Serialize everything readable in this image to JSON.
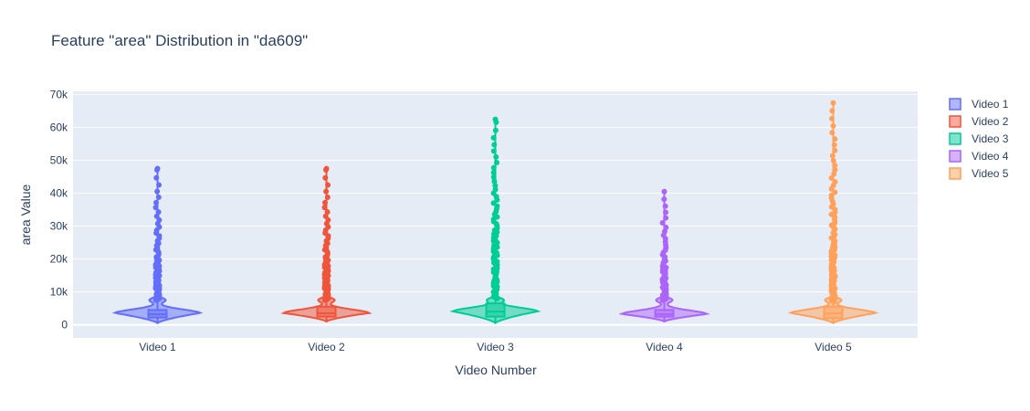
{
  "chart_data": {
    "type": "violin",
    "title": "Feature \"area\" Distribution in \"da609\"",
    "xlabel": "Video Number",
    "ylabel": "area Value",
    "ylim": [
      -4000,
      71000
    ],
    "yticks": [
      0,
      10000,
      20000,
      30000,
      40000,
      50000,
      60000,
      70000
    ],
    "ytick_labels": [
      "0",
      "10k",
      "20k",
      "30k",
      "40k",
      "50k",
      "60k",
      "70k"
    ],
    "categories": [
      "Video 1",
      "Video 2",
      "Video 3",
      "Video 4",
      "Video 5"
    ],
    "legend_position": "top-right",
    "grid": true,
    "series": [
      {
        "name": "Video 1",
        "color": "#636efa",
        "min": 500,
        "q1": 2200,
        "median": 3200,
        "q3": 4500,
        "upper_fence": 7500,
        "max": 47500,
        "density_peak": 3500
      },
      {
        "name": "Video 2",
        "color": "#ef553b",
        "min": 1000,
        "q1": 2500,
        "median": 3500,
        "q3": 5500,
        "upper_fence": 7500,
        "max": 47500,
        "density_peak": 3500
      },
      {
        "name": "Video 3",
        "color": "#00cc96",
        "min": 500,
        "q1": 2500,
        "median": 4000,
        "q3": 6500,
        "upper_fence": 8000,
        "max": 62500,
        "density_peak": 4000
      },
      {
        "name": "Video 4",
        "color": "#ab63fa",
        "min": 1000,
        "q1": 2500,
        "median": 3200,
        "q3": 4500,
        "upper_fence": 7500,
        "max": 40500,
        "density_peak": 3200
      },
      {
        "name": "Video 5",
        "color": "#ffa15a",
        "min": 500,
        "q1": 2000,
        "median": 3500,
        "q3": 5500,
        "upper_fence": 7000,
        "max": 67500,
        "density_peak": 3500
      }
    ]
  }
}
